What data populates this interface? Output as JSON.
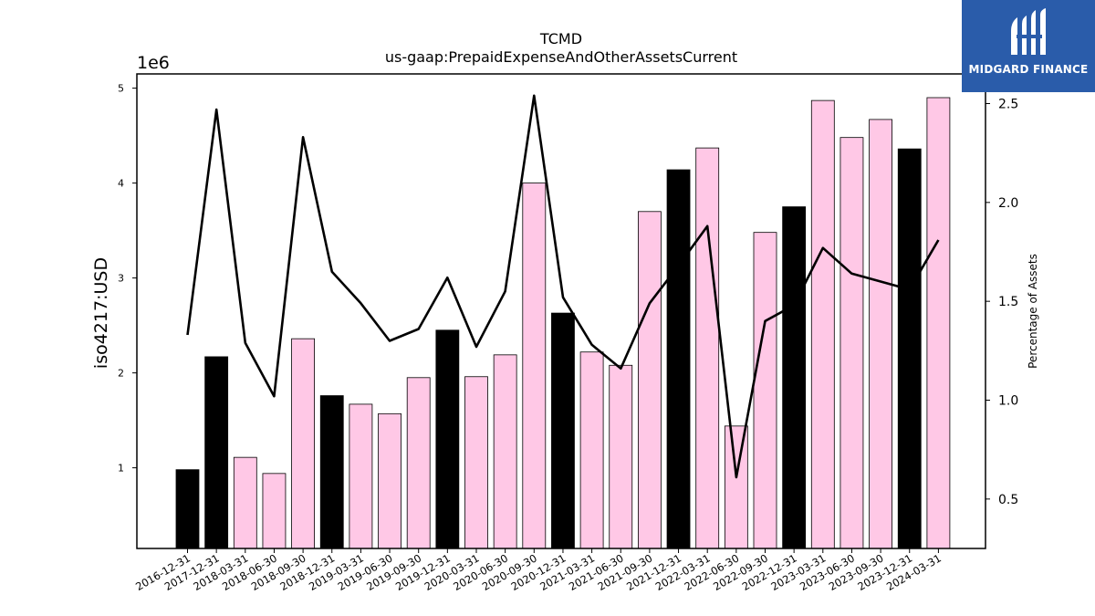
{
  "chart_data": {
    "type": "bar",
    "title": "TCMD",
    "subtitle": "us-gaap:PrepaidExpenseAndOtherAssetsCurrent",
    "ylabel": "iso4217:USD",
    "y_offset_text": "1e6",
    "y2label": "Percentage of Assets",
    "ylim": [
      150000,
      5150000
    ],
    "y2lim": [
      0.25,
      2.65
    ],
    "yticks": [
      "1",
      "2",
      "3",
      "4",
      "5"
    ],
    "y2ticks": [
      "0.5",
      "1.0",
      "1.5",
      "2.0",
      "2.5"
    ],
    "grid": false,
    "categories": [
      "2016-12-31",
      "2017-12-31",
      "2018-03-31",
      "2018-06-30",
      "2018-09-30",
      "2018-12-31",
      "2019-03-31",
      "2019-06-30",
      "2019-09-30",
      "2019-12-31",
      "2020-03-31",
      "2020-06-30",
      "2020-09-30",
      "2020-12-31",
      "2021-03-31",
      "2021-06-30",
      "2021-09-30",
      "2021-12-31",
      "2022-03-31",
      "2022-06-30",
      "2022-09-30",
      "2022-12-31",
      "2023-03-31",
      "2023-06-30",
      "2023-09-30",
      "2023-12-31",
      "2024-03-31"
    ],
    "series": [
      {
        "type": "bar",
        "values": [
          980000,
          2170000,
          1110000,
          940000,
          2360000,
          1760000,
          1670000,
          1570000,
          1950000,
          2450000,
          1960000,
          2190000,
          4000000,
          2630000,
          2220000,
          2080000,
          3700000,
          4140000,
          4370000,
          1440000,
          3480000,
          3750000,
          4870000,
          4480000,
          4670000,
          4360000,
          4900000
        ],
        "colors": [
          "#000000",
          "#000000",
          "#ffc8e6",
          "#ffc8e6",
          "#ffc8e6",
          "#000000",
          "#ffc8e6",
          "#ffc8e6",
          "#ffc8e6",
          "#000000",
          "#ffc8e6",
          "#ffc8e6",
          "#ffc8e6",
          "#000000",
          "#ffc8e6",
          "#ffc8e6",
          "#ffc8e6",
          "#000000",
          "#ffc8e6",
          "#ffc8e6",
          "#ffc8e6",
          "#000000",
          "#ffc8e6",
          "#ffc8e6",
          "#ffc8e6",
          "#000000",
          "#ffc8e6"
        ]
      },
      {
        "type": "line",
        "axis": "right",
        "color": "#000000",
        "values": [
          1.33,
          2.47,
          1.29,
          1.02,
          2.33,
          1.65,
          1.49,
          1.3,
          1.36,
          1.62,
          1.27,
          1.55,
          2.54,
          1.52,
          1.28,
          1.16,
          1.49,
          1.68,
          1.88,
          0.61,
          1.4,
          1.48,
          1.77,
          1.64,
          1.6,
          1.56,
          1.81
        ]
      }
    ]
  },
  "logo": {
    "name": "MIDGARD FINANCE",
    "background": "#2a5caa"
  }
}
